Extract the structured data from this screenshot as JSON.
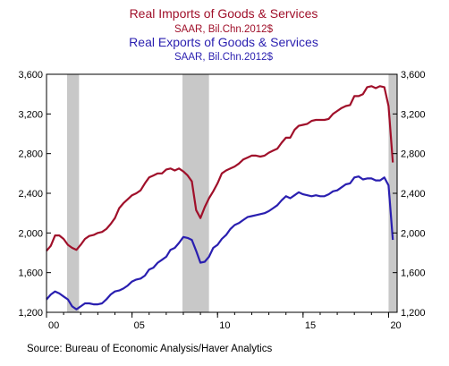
{
  "chart_data": {
    "type": "line",
    "titles": [
      {
        "title": "Real Imports of Goods & Services",
        "subtitle": "SAAR, Bil.Chn.2012$",
        "color": "#a0102a"
      },
      {
        "title": "Real Exports of Goods & Services",
        "subtitle": "SAAR, Bil.Chn.2012$",
        "color": "#2a1fb0"
      }
    ],
    "xlim": [
      2000,
      2020.5
    ],
    "ylim": [
      1200,
      3600
    ],
    "y_ticks": [
      1200,
      1600,
      2000,
      2400,
      2800,
      3200,
      3600
    ],
    "y_tick_labels": [
      "1,200",
      "1,600",
      "2,000",
      "2,400",
      "2,800",
      "3,200",
      "3,600"
    ],
    "x_ticks": [
      2000,
      2005,
      2010,
      2015,
      2020
    ],
    "x_tick_labels": [
      "00",
      "05",
      "10",
      "15",
      "20"
    ],
    "grid": false,
    "recessions": [
      [
        2001.2,
        2001.9
      ],
      [
        2007.95,
        2009.5
      ],
      [
        2020.0,
        2020.5
      ]
    ],
    "recession_color": "#c8c8c8",
    "series": [
      {
        "color": "#a0102a",
        "x": [
          2000.0,
          2000.25,
          2000.5,
          2000.75,
          2001.0,
          2001.25,
          2001.5,
          2001.75,
          2002.0,
          2002.25,
          2002.5,
          2002.75,
          2003.0,
          2003.25,
          2003.5,
          2003.75,
          2004.0,
          2004.25,
          2004.5,
          2004.75,
          2005.0,
          2005.25,
          2005.5,
          2005.75,
          2006.0,
          2006.25,
          2006.5,
          2006.75,
          2007.0,
          2007.25,
          2007.5,
          2007.75,
          2008.0,
          2008.25,
          2008.5,
          2008.75,
          2009.0,
          2009.25,
          2009.5,
          2009.75,
          2010.0,
          2010.25,
          2010.5,
          2010.75,
          2011.0,
          2011.25,
          2011.5,
          2011.75,
          2012.0,
          2012.25,
          2012.5,
          2012.75,
          2013.0,
          2013.25,
          2013.5,
          2013.75,
          2014.0,
          2014.25,
          2014.5,
          2014.75,
          2015.0,
          2015.25,
          2015.5,
          2015.75,
          2016.0,
          2016.25,
          2016.5,
          2016.75,
          2017.0,
          2017.25,
          2017.5,
          2017.75,
          2018.0,
          2018.25,
          2018.5,
          2018.75,
          2019.0,
          2019.25,
          2019.5,
          2019.75,
          2020.0,
          2020.25
        ],
        "values": [
          1820,
          1870,
          1975,
          1975,
          1940,
          1880,
          1850,
          1830,
          1880,
          1940,
          1970,
          1980,
          2000,
          2010,
          2040,
          2090,
          2150,
          2250,
          2300,
          2340,
          2380,
          2400,
          2430,
          2500,
          2560,
          2580,
          2600,
          2600,
          2640,
          2650,
          2630,
          2650,
          2620,
          2580,
          2520,
          2230,
          2150,
          2260,
          2350,
          2420,
          2500,
          2600,
          2630,
          2650,
          2670,
          2700,
          2740,
          2760,
          2780,
          2780,
          2770,
          2780,
          2810,
          2830,
          2850,
          2910,
          2960,
          2960,
          3040,
          3080,
          3090,
          3100,
          3130,
          3140,
          3140,
          3140,
          3150,
          3200,
          3230,
          3260,
          3280,
          3290,
          3380,
          3380,
          3400,
          3470,
          3480,
          3460,
          3480,
          3470,
          3280,
          2710
        ]
      },
      {
        "color": "#2a1fb0",
        "x": [
          2000.0,
          2000.25,
          2000.5,
          2000.75,
          2001.0,
          2001.25,
          2001.5,
          2001.75,
          2002.0,
          2002.25,
          2002.5,
          2002.75,
          2003.0,
          2003.25,
          2003.5,
          2003.75,
          2004.0,
          2004.25,
          2004.5,
          2004.75,
          2005.0,
          2005.25,
          2005.5,
          2005.75,
          2006.0,
          2006.25,
          2006.5,
          2006.75,
          2007.0,
          2007.25,
          2007.5,
          2007.75,
          2008.0,
          2008.25,
          2008.5,
          2008.75,
          2009.0,
          2009.25,
          2009.5,
          2009.75,
          2010.0,
          2010.25,
          2010.5,
          2010.75,
          2011.0,
          2011.25,
          2011.5,
          2011.75,
          2012.0,
          2012.25,
          2012.5,
          2012.75,
          2013.0,
          2013.25,
          2013.5,
          2013.75,
          2014.0,
          2014.25,
          2014.5,
          2014.75,
          2015.0,
          2015.25,
          2015.5,
          2015.75,
          2016.0,
          2016.25,
          2016.5,
          2016.75,
          2017.0,
          2017.25,
          2017.5,
          2017.75,
          2018.0,
          2018.25,
          2018.5,
          2018.75,
          2019.0,
          2019.25,
          2019.5,
          2019.75,
          2020.0,
          2020.25
        ],
        "values": [
          1330,
          1380,
          1410,
          1390,
          1360,
          1330,
          1260,
          1230,
          1260,
          1290,
          1290,
          1280,
          1280,
          1290,
          1330,
          1380,
          1410,
          1420,
          1440,
          1470,
          1510,
          1530,
          1540,
          1570,
          1630,
          1650,
          1700,
          1730,
          1760,
          1830,
          1850,
          1900,
          1960,
          1950,
          1930,
          1820,
          1700,
          1710,
          1760,
          1850,
          1880,
          1940,
          1980,
          2040,
          2080,
          2100,
          2130,
          2160,
          2170,
          2180,
          2190,
          2200,
          2220,
          2250,
          2280,
          2330,
          2370,
          2350,
          2380,
          2410,
          2390,
          2380,
          2370,
          2380,
          2370,
          2370,
          2390,
          2420,
          2430,
          2460,
          2490,
          2500,
          2560,
          2570,
          2540,
          2550,
          2550,
          2530,
          2530,
          2560,
          2480,
          1930
        ]
      }
    ]
  },
  "footer": {
    "source": "Source:  Bureau of Economic Analysis/Haver Analytics"
  }
}
